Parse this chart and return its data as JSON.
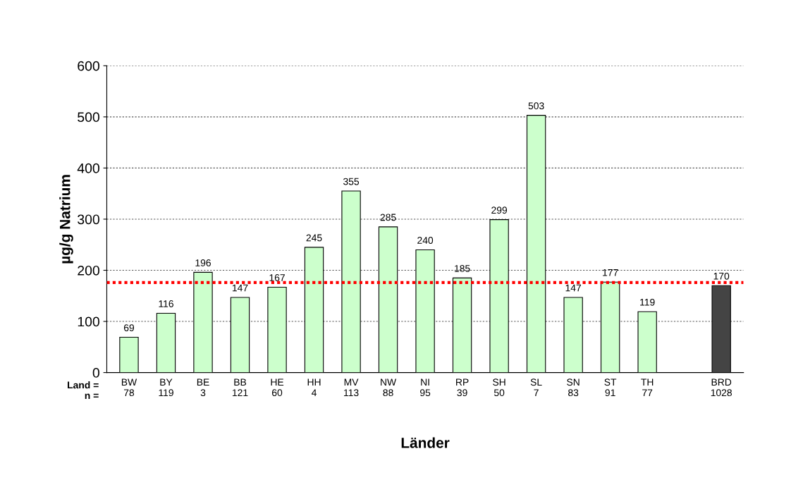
{
  "chart_data": {
    "type": "bar",
    "xlabel": "Länder",
    "ylabel": "µg/g Natrium",
    "categories": [
      "BW\n78",
      "BY\n119",
      "BE\n3",
      "BB\n121",
      "HE\n60",
      "HH\n4",
      "MV\n113",
      "NW\n88",
      "NI\n95",
      "RP\n39",
      "SH\n50",
      "SL\n7",
      "SN\n83",
      "ST\n91",
      "TH\n77",
      null,
      "BRD\n1028"
    ],
    "values": [
      69,
      116,
      196,
      147,
      167,
      245,
      355,
      285,
      240,
      185,
      299,
      503,
      147,
      177,
      119,
      null,
      170
    ],
    "colors": [
      "#ccffcc",
      "#ccffcc",
      "#ccffcc",
      "#ccffcc",
      "#ccffcc",
      "#ccffcc",
      "#ccffcc",
      "#ccffcc",
      "#ccffcc",
      "#ccffcc",
      "#ccffcc",
      "#ccffcc",
      "#ccffcc",
      "#ccffcc",
      "#ccffcc",
      null,
      "#444444"
    ],
    "data_labels": true,
    "ylim": [
      0,
      600
    ],
    "yticks": [
      0,
      100,
      200,
      300,
      400,
      500,
      600
    ],
    "grid": "y",
    "ref_lines": [
      {
        "axis": "y",
        "value": 176,
        "color": "#ff0000",
        "line_style": "dotted"
      }
    ],
    "annotations": [
      "Land =\nn ="
    ]
  }
}
